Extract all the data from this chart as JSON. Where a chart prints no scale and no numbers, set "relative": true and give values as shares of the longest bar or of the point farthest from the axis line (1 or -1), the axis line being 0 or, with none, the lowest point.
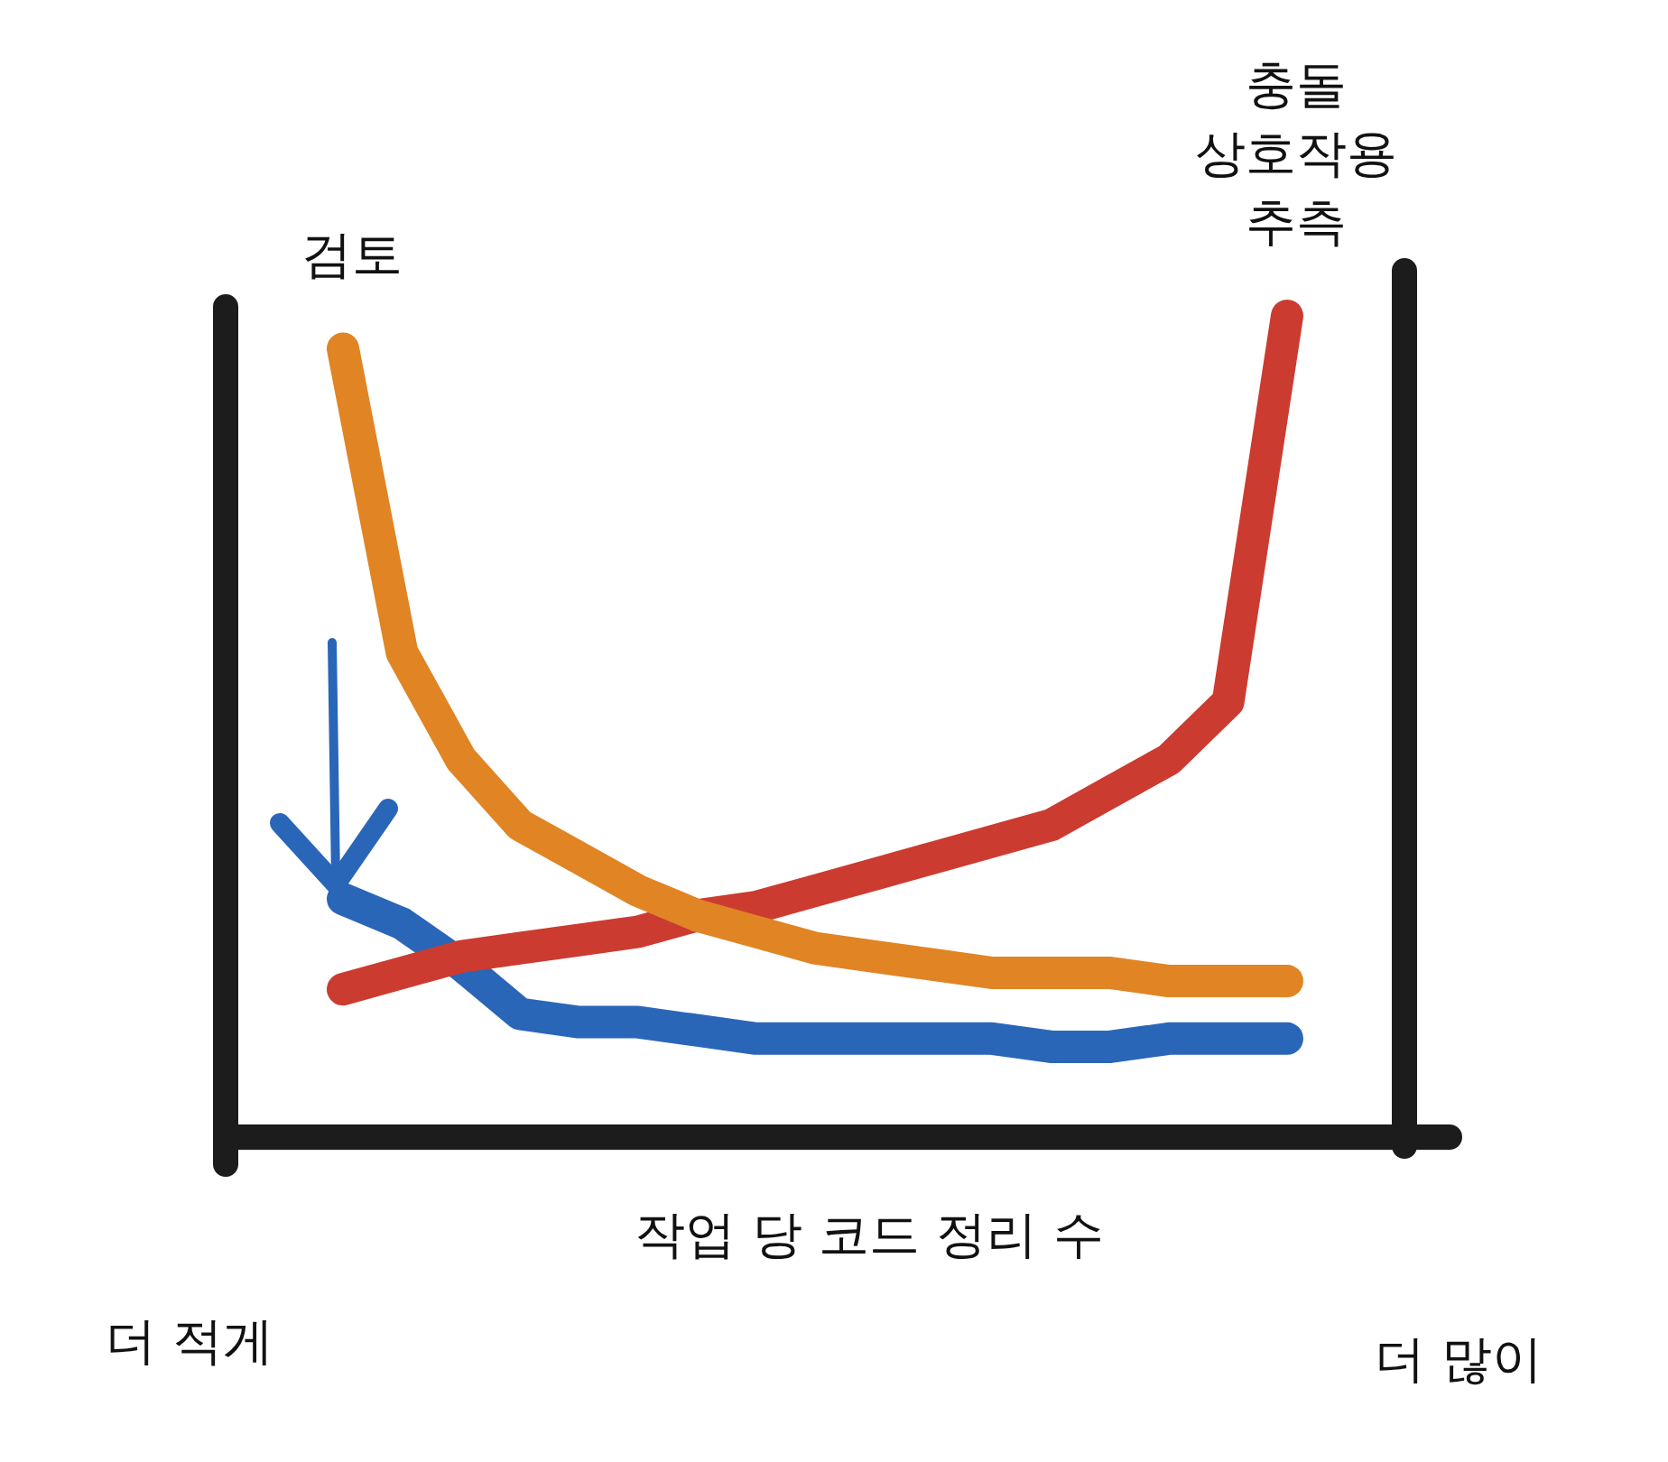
{
  "chart_data": {
    "type": "line",
    "relative": true,
    "xlabel": "작업 당 코드 정리 수",
    "annotations": [
      "더 적게",
      "더 많이"
    ],
    "categories": [
      null,
      null,
      null,
      null,
      null,
      null,
      null,
      null,
      null,
      null,
      null,
      null,
      null,
      null,
      null,
      null,
      null
    ],
    "series": [
      {
        "name": "검토",
        "color": "#e08424",
        "values": [
          0.96,
          0.59,
          0.46,
          0.38,
          0.34,
          0.3,
          0.27,
          0.25,
          0.23,
          0.22,
          0.21,
          0.2,
          0.2,
          0.2,
          0.19,
          0.19,
          0.19
        ]
      },
      {
        "name": "충돌 상호작용 추측",
        "color": "#cc3b30",
        "values": [
          0.18,
          0.2,
          0.22,
          0.23,
          0.24,
          0.25,
          0.27,
          0.28,
          0.3,
          0.32,
          0.34,
          0.36,
          0.38,
          0.42,
          0.46,
          0.53,
          1.0
        ]
      },
      {
        "color": "#2a66b8",
        "values": [
          0.29,
          0.26,
          0.21,
          0.15,
          0.14,
          0.14,
          0.13,
          0.12,
          0.12,
          0.12,
          0.12,
          0.12,
          0.11,
          0.11,
          0.12,
          0.12,
          0.12
        ]
      }
    ],
    "legend": false,
    "grid": false,
    "marker": "none",
    "line_style": "solid"
  }
}
